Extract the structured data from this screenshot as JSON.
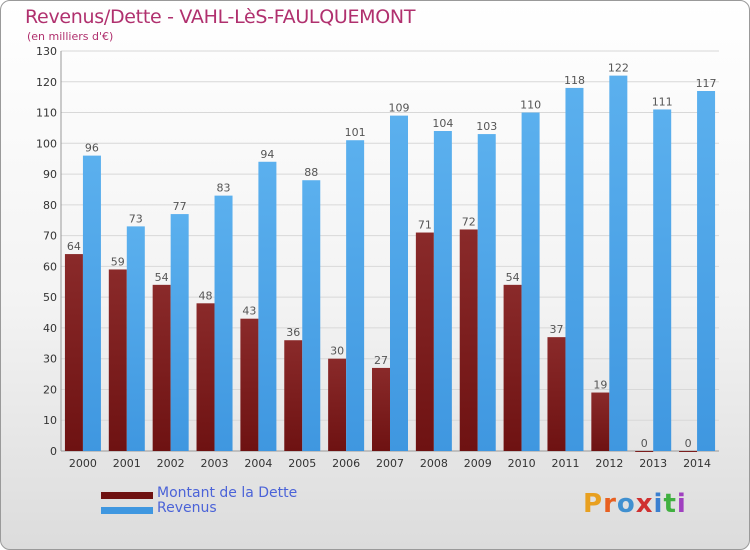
{
  "title": "Revenus/Dette - VAHL-LèS-FAULQUEMONT",
  "subtitle": "(en milliers d'€)",
  "legend": [
    {
      "label": "Montant de la Dette",
      "color": "#6e1212"
    },
    {
      "label": "Revenus",
      "color": "#3f97e0"
    }
  ],
  "logo": {
    "text": "Proxiti",
    "colors": [
      "#e8a020",
      "#e86020",
      "#4090d0",
      "#d03030",
      "#3a7fd0",
      "#40b040",
      "#a040c0"
    ]
  },
  "colors": {
    "debt": "#6e1212",
    "revenue": "#3f97e0",
    "value_label": "#555555",
    "axis_text": "#333333",
    "grid": "#d8d8d8"
  },
  "chart_data": {
    "type": "bar",
    "categories": [
      "2000",
      "2001",
      "2002",
      "2003",
      "2004",
      "2005",
      "2006",
      "2007",
      "2008",
      "2009",
      "2010",
      "2011",
      "2012",
      "2013",
      "2014"
    ],
    "series": [
      {
        "name": "Montant de la Dette",
        "values": [
          64,
          59,
          54,
          48,
          43,
          36,
          30,
          27,
          71,
          72,
          54,
          37,
          19,
          0,
          0
        ]
      },
      {
        "name": "Revenus",
        "values": [
          96,
          73,
          77,
          83,
          94,
          88,
          101,
          109,
          104,
          103,
          110,
          118,
          122,
          111,
          117
        ]
      }
    ],
    "ylim": [
      0,
      130
    ],
    "yticks": [
      0,
      10,
      20,
      30,
      40,
      50,
      60,
      70,
      80,
      90,
      100,
      110,
      120,
      130
    ],
    "grid": true,
    "legend_position": "bottom-left"
  }
}
